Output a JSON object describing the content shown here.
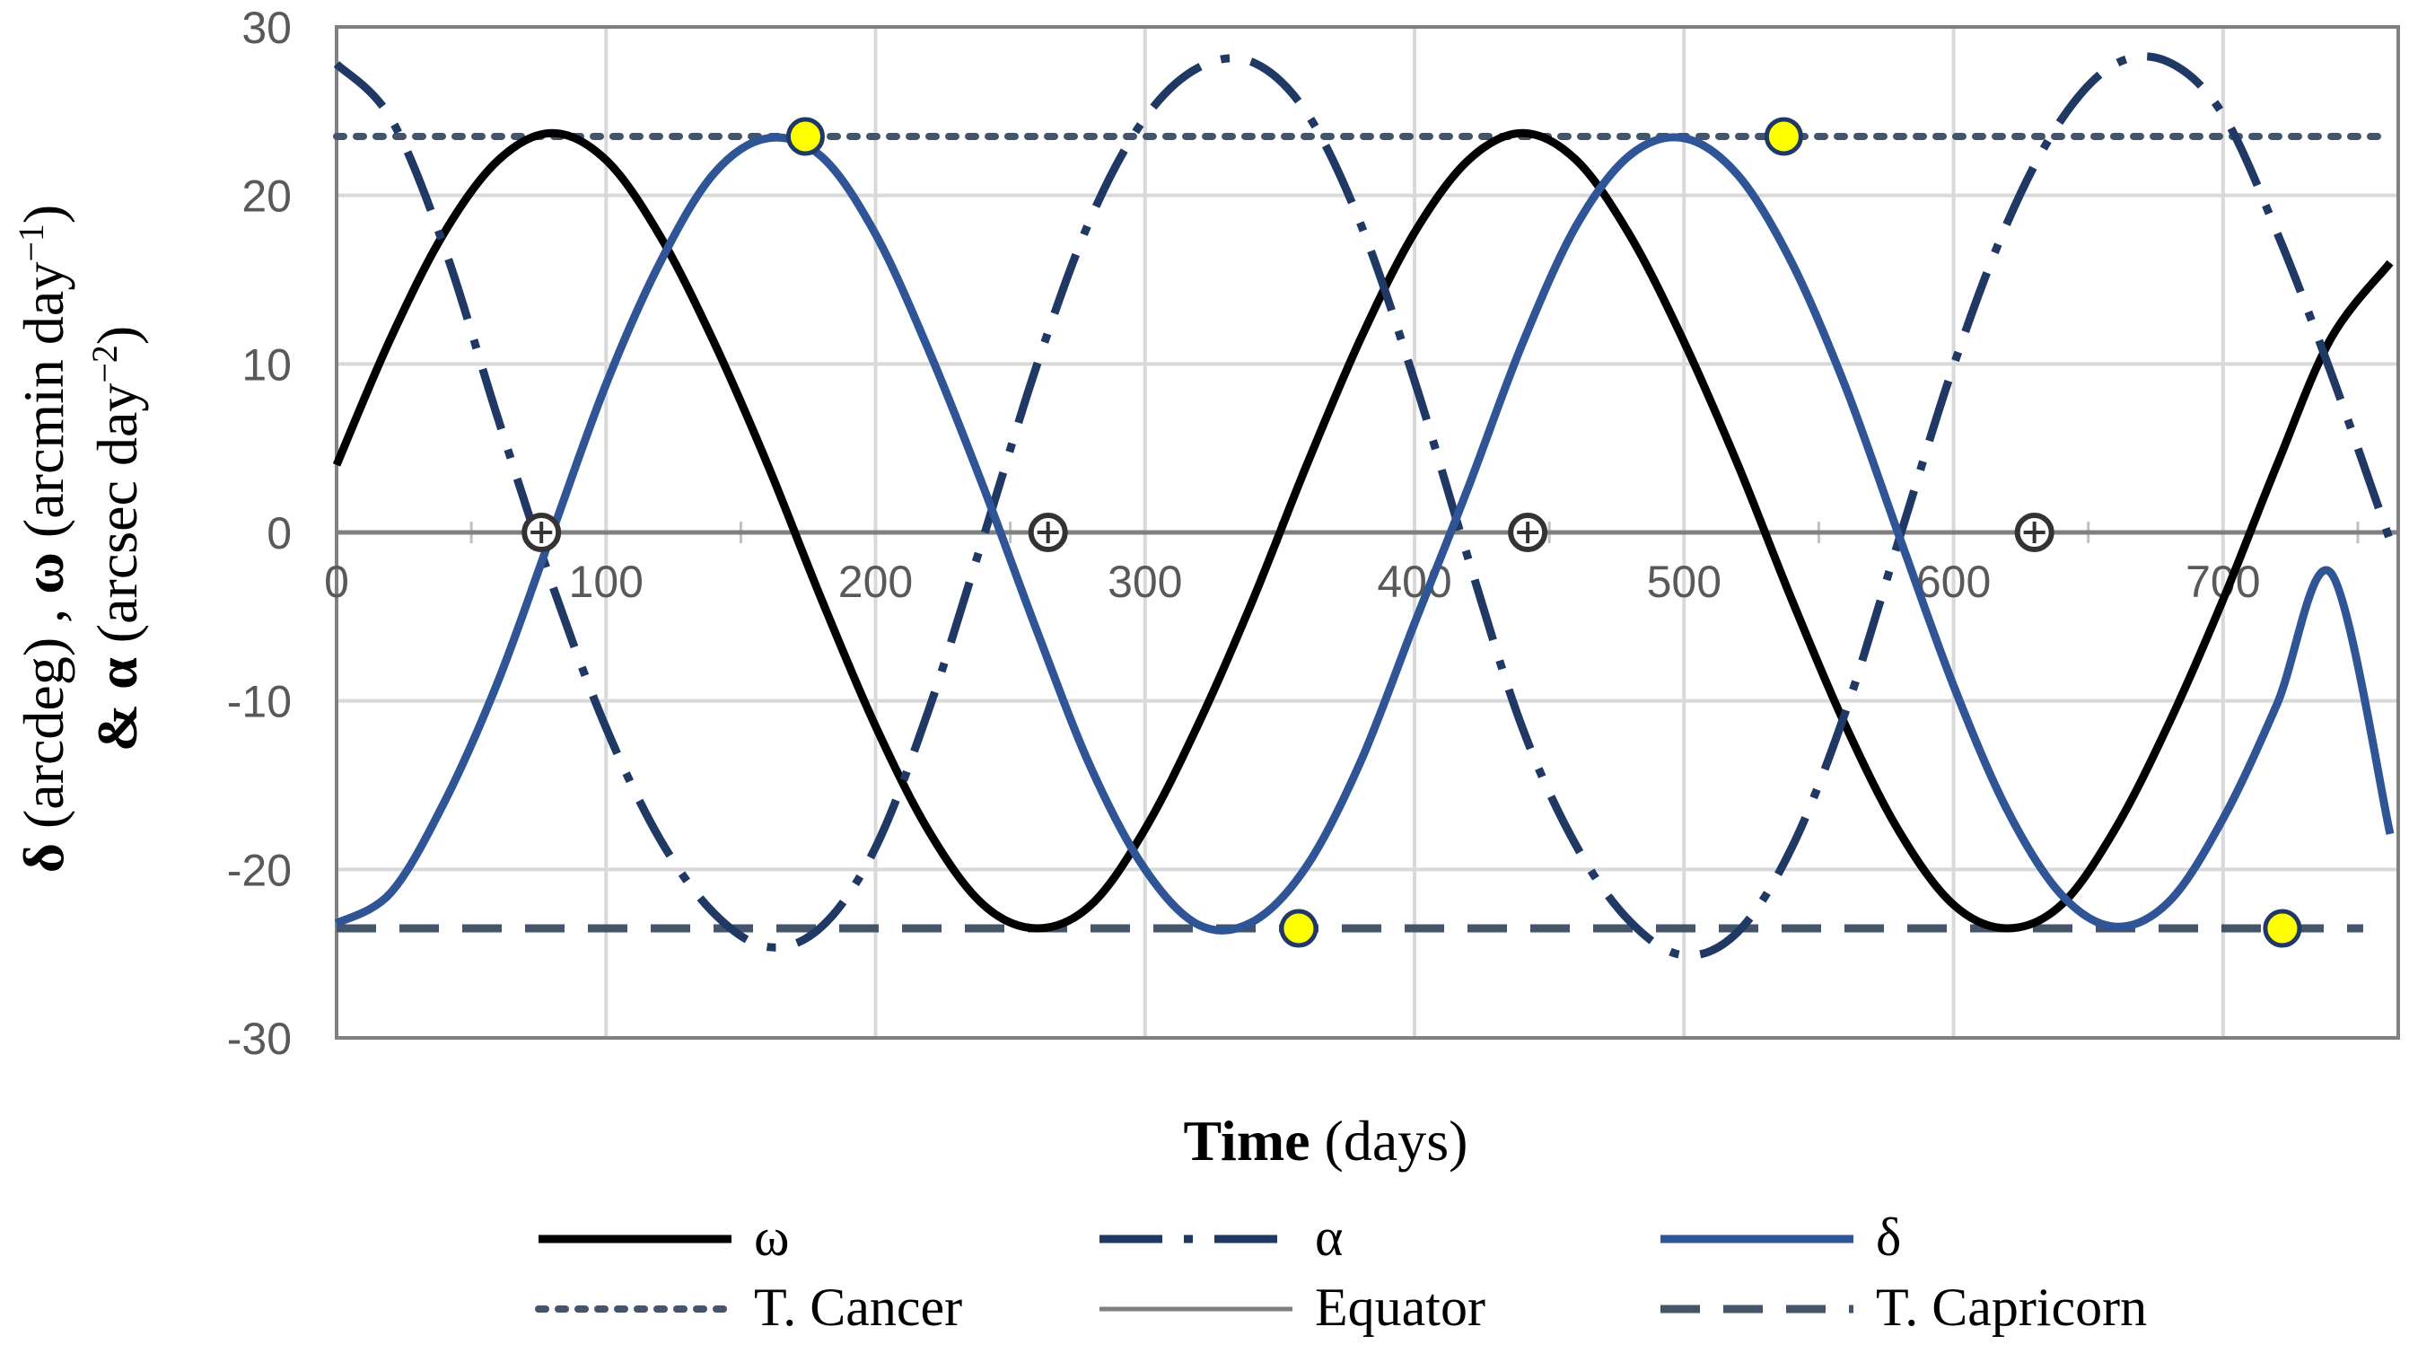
{
  "chart_data": {
    "type": "line",
    "title": "",
    "xlabel_bold": "Time",
    "xlabel_rest": " (days)",
    "ylabel_line1": {
      "sym1": "δ",
      "text1": " (arcdeg) ,  ",
      "sym2": "ω",
      "text2": " (arcmin day",
      "sup2": "−1",
      "close2": ")"
    },
    "ylabel_line2": {
      "amp": "&",
      "sym3": "α",
      "text3": " (arcsec day",
      "sup3": "−2",
      "close3": ")"
    },
    "xlim": [
      0,
      765
    ],
    "ylim": [
      -30,
      30
    ],
    "x_ticks": [
      0,
      100,
      200,
      300,
      400,
      500,
      600,
      700
    ],
    "x_tick_labels": [
      "0",
      "100",
      "200",
      "300",
      "400",
      "500",
      "600",
      "700"
    ],
    "y_ticks": [
      -30,
      -20,
      -10,
      0,
      10,
      20,
      30
    ],
    "y_tick_labels": [
      "-30",
      "-20",
      "-10",
      "0",
      "10",
      "20",
      "30"
    ],
    "grid": true,
    "legend_position": "bottom",
    "series": [
      {
        "name": "ω",
        "color": "#000000",
        "dash": "solid",
        "x": [
          0,
          20,
          40,
          60,
          80,
          100,
          120,
          140,
          160,
          180,
          200,
          220,
          240,
          260,
          280,
          300,
          320,
          340,
          360,
          380,
          400,
          420,
          440,
          460,
          480,
          500,
          520,
          540,
          560,
          580,
          600,
          620,
          640,
          660,
          680,
          700,
          720,
          740,
          762
        ],
        "y": [
          4.0,
          11.5,
          17.8,
          22.1,
          23.7,
          22.1,
          17.6,
          11.3,
          4.0,
          -4.0,
          -11.5,
          -17.8,
          -22.1,
          -23.5,
          -22.1,
          -17.6,
          -11.3,
          -4.0,
          4.0,
          11.5,
          17.8,
          22.1,
          23.7,
          22.1,
          17.6,
          11.3,
          4.0,
          -4.0,
          -11.5,
          -17.8,
          -22.1,
          -23.5,
          -22.1,
          -17.6,
          -11.3,
          -4.0,
          4.0,
          11.5,
          16.0
        ]
      },
      {
        "name": "α",
        "color": "#1f3864",
        "dash": "dashdot",
        "x": [
          0,
          20,
          40,
          60,
          80,
          100,
          120,
          140,
          160,
          180,
          200,
          220,
          240,
          260,
          280,
          300,
          320,
          340,
          360,
          380,
          400,
          420,
          440,
          460,
          480,
          500,
          520,
          540,
          560,
          580,
          600,
          620,
          640,
          660,
          680,
          700,
          720,
          740,
          762
        ],
        "y": [
          27.8,
          24.6,
          16.9,
          6.7,
          -3.1,
          -11.6,
          -18.2,
          -22.6,
          -24.6,
          -23.4,
          -18.7,
          -10.4,
          -0.3,
          10.0,
          18.7,
          24.6,
          27.6,
          27.9,
          24.9,
          18.3,
          9.0,
          -1.6,
          -11.6,
          -18.6,
          -23.1,
          -25.1,
          -23.7,
          -18.7,
          -10.6,
          -0.3,
          9.9,
          18.4,
          24.5,
          27.8,
          27.9,
          24.8,
          17.8,
          9.5,
          -0.5
        ]
      },
      {
        "name": "δ",
        "color": "#2f5597",
        "dash": "solid",
        "x": [
          0,
          20,
          40,
          60,
          80,
          100,
          120,
          140,
          160,
          180,
          200,
          220,
          240,
          260,
          280,
          300,
          320,
          340,
          360,
          380,
          400,
          420,
          440,
          460,
          480,
          500,
          520,
          540,
          560,
          580,
          600,
          620,
          640,
          660,
          680,
          700,
          720,
          740,
          762
        ],
        "y": [
          -23.2,
          -21.4,
          -16.0,
          -8.8,
          0.0,
          8.8,
          16.0,
          21.3,
          23.4,
          22.3,
          17.7,
          10.7,
          2.7,
          -5.9,
          -14.0,
          -20.0,
          -23.3,
          -23.1,
          -19.8,
          -13.6,
          -5.4,
          2.7,
          11.2,
          18.2,
          22.4,
          23.4,
          21.2,
          16.0,
          8.6,
          -0.3,
          -9.1,
          -16.5,
          -21.5,
          -23.4,
          -21.9,
          -17.0,
          -10.2,
          -2.4,
          -17.9
        ]
      },
      {
        "name": "T. Cancer",
        "color": "#44546a",
        "dash": "dotted",
        "x": [
          0,
          762
        ],
        "y": [
          23.5,
          23.5
        ]
      },
      {
        "name": "Equator",
        "color": "#808080",
        "dash": "solid",
        "x": [
          0,
          765
        ],
        "y": [
          0,
          0
        ]
      },
      {
        "name": "T. Capricorn",
        "color": "#44546a",
        "dash": "dashed",
        "x": [
          0,
          752
        ],
        "y": [
          -23.5,
          -23.5
        ]
      }
    ],
    "markers": {
      "extrema": {
        "color": "#ffff00",
        "stroke": "#1f3864",
        "points": [
          [
            174,
            23.5
          ],
          [
            357,
            -23.5
          ],
          [
            537,
            23.5
          ],
          [
            722,
            -23.5
          ]
        ]
      },
      "crossings": {
        "color": "#ffffff",
        "stroke": "#333333",
        "points": [
          [
            76,
            0
          ],
          [
            264,
            0
          ],
          [
            442,
            0
          ],
          [
            630,
            0
          ]
        ]
      }
    },
    "legend": [
      {
        "label": "ω",
        "series": 0
      },
      {
        "label": "α",
        "series": 1
      },
      {
        "label": "δ",
        "series": 2
      },
      {
        "label": "T. Cancer",
        "series": 3
      },
      {
        "label": "Equator",
        "series": 4
      },
      {
        "label": "T. Capricorn",
        "series": 5
      }
    ]
  }
}
